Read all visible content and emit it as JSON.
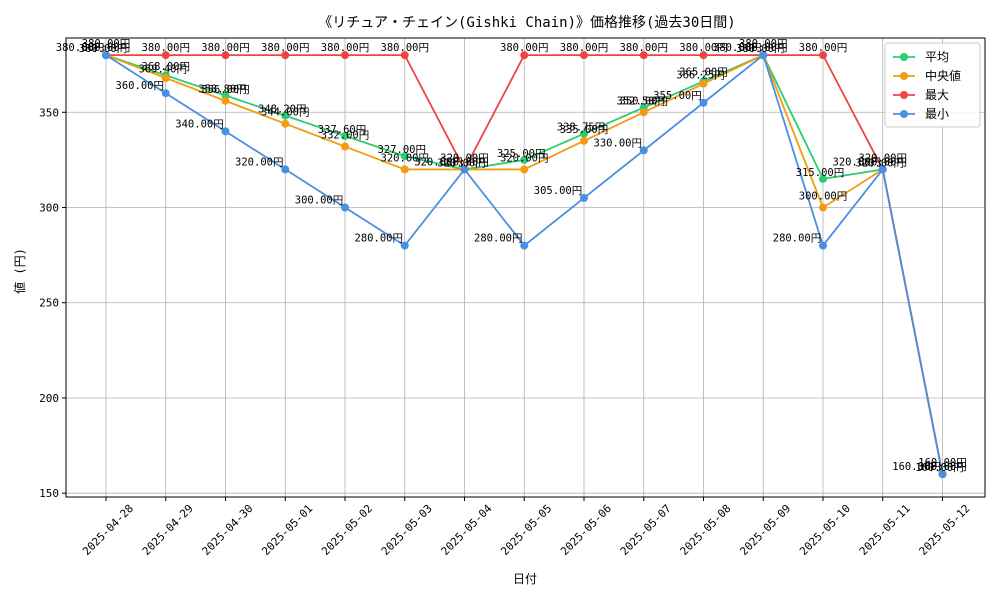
{
  "chart_data": {
    "type": "line",
    "title": "《リチュア・チェイン(Gishki Chain)》価格推移(過去30日間)",
    "xlabel": "日付",
    "ylabel": "値 (円)",
    "categories": [
      "2025-04-28",
      "2025-04-29",
      "2025-04-30",
      "2025-05-01",
      "2025-05-02",
      "2025-05-03",
      "2025-05-04",
      "2025-05-05",
      "2025-05-06",
      "2025-05-07",
      "2025-05-08",
      "2025-05-09",
      "2025-05-10",
      "2025-05-11",
      "2025-05-12"
    ],
    "ylim": [
      148,
      389
    ],
    "yticks": [
      150,
      200,
      250,
      300,
      350
    ],
    "grid": true,
    "legend_position": "top-right",
    "series": [
      {
        "name": "平均",
        "color": "#2ecc71",
        "values": [
          380,
          369.4,
          358.8,
          348.2,
          337.6,
          327,
          320,
          325,
          338.75,
          352.5,
          366.25,
          380,
          315,
          320,
          160
        ]
      },
      {
        "name": "中央値",
        "color": "#f39c12",
        "values": [
          380,
          368,
          356,
          344,
          332,
          320,
          320,
          320,
          335,
          350,
          365,
          380,
          300,
          320,
          160
        ]
      },
      {
        "name": "最大",
        "color": "#ef4444",
        "values": [
          380,
          380,
          380,
          380,
          380,
          380,
          320,
          380,
          380,
          380,
          380,
          380,
          380,
          320,
          160
        ]
      },
      {
        "name": "最小",
        "color": "#4a90e2",
        "values": [
          380,
          360,
          340,
          320,
          300,
          280,
          320,
          280,
          305,
          330,
          355,
          380,
          280,
          320,
          160
        ]
      }
    ],
    "value_suffix": "円"
  }
}
